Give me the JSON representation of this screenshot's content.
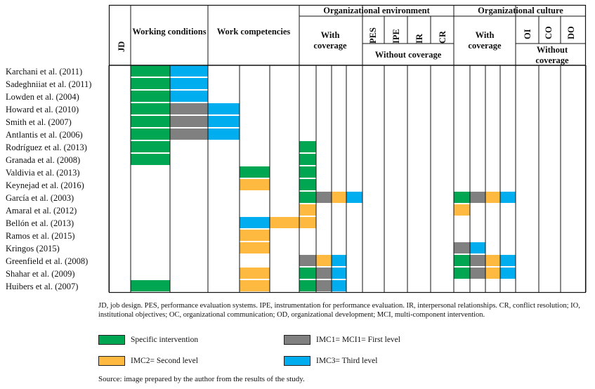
{
  "colors": {
    "specific": "#00A651",
    "first": "#808080",
    "second": "#FDB940",
    "third": "#00AEEF"
  },
  "headers": {
    "jd": "JD",
    "working_conditions": "Working conditions",
    "work_competencies": "Work competencies",
    "org_environment": "Organizational environment",
    "org_culture": "Organizational culture",
    "with_coverage": "With coverage",
    "without_coverage": "Without coverage",
    "pes": "PES",
    "ipe": "IPE",
    "ir": "IR",
    "cr": "CR",
    "oi": "OI",
    "co": "CO",
    "do": "DO"
  },
  "rows": [
    {
      "label": "Karchani et al. (2011)",
      "cells": [
        [
          1,
          "specific"
        ],
        [
          2,
          "third"
        ]
      ]
    },
    {
      "label": "Sadeghniiat et al. (2011)",
      "cells": [
        [
          1,
          "specific"
        ],
        [
          2,
          "third"
        ]
      ]
    },
    {
      "label": "Lowden et al. (2004)",
      "cells": [
        [
          1,
          "specific"
        ],
        [
          2,
          "third"
        ]
      ]
    },
    {
      "label": "Howard et al. (2010)",
      "cells": [
        [
          1,
          "specific"
        ],
        [
          2,
          "first"
        ],
        [
          3,
          "third"
        ]
      ]
    },
    {
      "label": "Smith et al. (2007)",
      "cells": [
        [
          1,
          "specific"
        ],
        [
          2,
          "first"
        ],
        [
          3,
          "third"
        ]
      ]
    },
    {
      "label": "Antlantis et al. (2006)",
      "cells": [
        [
          1,
          "specific"
        ],
        [
          2,
          "first"
        ],
        [
          3,
          "third"
        ]
      ]
    },
    {
      "label": "Rodríguez et al. (2013)",
      "cells": [
        [
          1,
          "specific"
        ],
        [
          6,
          "specific"
        ]
      ]
    },
    {
      "label": "Granada et al. (2008)",
      "cells": [
        [
          1,
          "specific"
        ],
        [
          6,
          "specific"
        ]
      ]
    },
    {
      "label": "Valdivia et al. (2013)",
      "cells": [
        [
          4,
          "specific"
        ],
        [
          6,
          "specific"
        ]
      ]
    },
    {
      "label": "Keynejad et al. (2016)",
      "cells": [
        [
          4,
          "second"
        ],
        [
          6,
          "specific"
        ]
      ]
    },
    {
      "label": "García et al. (2003)",
      "cells": [
        [
          6,
          "specific"
        ],
        [
          7,
          "first"
        ],
        [
          8,
          "second"
        ],
        [
          9,
          "third"
        ],
        [
          14,
          "specific"
        ],
        [
          15,
          "first"
        ],
        [
          16,
          "second"
        ],
        [
          17,
          "third"
        ]
      ]
    },
    {
      "label": "Amaral et al. (2012)",
      "cells": [
        [
          6,
          "second"
        ],
        [
          14,
          "second"
        ]
      ]
    },
    {
      "label": "Bellón et al. (2013)",
      "cells": [
        [
          4,
          "third"
        ],
        [
          5,
          "second"
        ],
        [
          6,
          "second"
        ]
      ]
    },
    {
      "label": "Ramos et al. (2015)",
      "cells": [
        [
          4,
          "second"
        ]
      ]
    },
    {
      "label": "Kringos (2015)",
      "cells": [
        [
          4,
          "second"
        ],
        [
          14,
          "first"
        ],
        [
          15,
          "third"
        ]
      ]
    },
    {
      "label": "Greenfield et al. (2008)",
      "cells": [
        [
          6,
          "first"
        ],
        [
          7,
          "second"
        ],
        [
          8,
          "third"
        ],
        [
          14,
          "specific"
        ],
        [
          15,
          "first"
        ],
        [
          16,
          "second"
        ],
        [
          17,
          "third"
        ]
      ]
    },
    {
      "label": "Shahar et al. (2009)",
      "cells": [
        [
          4,
          "second"
        ],
        [
          6,
          "specific"
        ],
        [
          7,
          "first"
        ],
        [
          8,
          "third"
        ],
        [
          14,
          "specific"
        ],
        [
          15,
          "first"
        ],
        [
          16,
          "second"
        ],
        [
          17,
          "third"
        ]
      ]
    },
    {
      "label": "Huibers et al. (2007)",
      "cells": [
        [
          1,
          "specific"
        ],
        [
          4,
          "second"
        ],
        [
          6,
          "specific"
        ],
        [
          7,
          "first"
        ],
        [
          8,
          "third"
        ]
      ]
    }
  ],
  "note": "JD, job design. PES, performance evaluation systems. IPE, instrumentation for performance evaluation. IR, interpersonal relationships. CR, conflict resolution; IO, institutional objectives; OC, organizational communication; OD, organizational development; MCI, multi-component intervention.",
  "legend": [
    {
      "key": "specific",
      "label": "Specific intervention"
    },
    {
      "key": "first",
      "label": "IMC1= MCI1= First level"
    },
    {
      "key": "second",
      "label": "IMC2= Second level"
    },
    {
      "key": "third",
      "label": "IMC3= Third level"
    }
  ],
  "source": "Source: image prepared by the author from the results of the study."
}
